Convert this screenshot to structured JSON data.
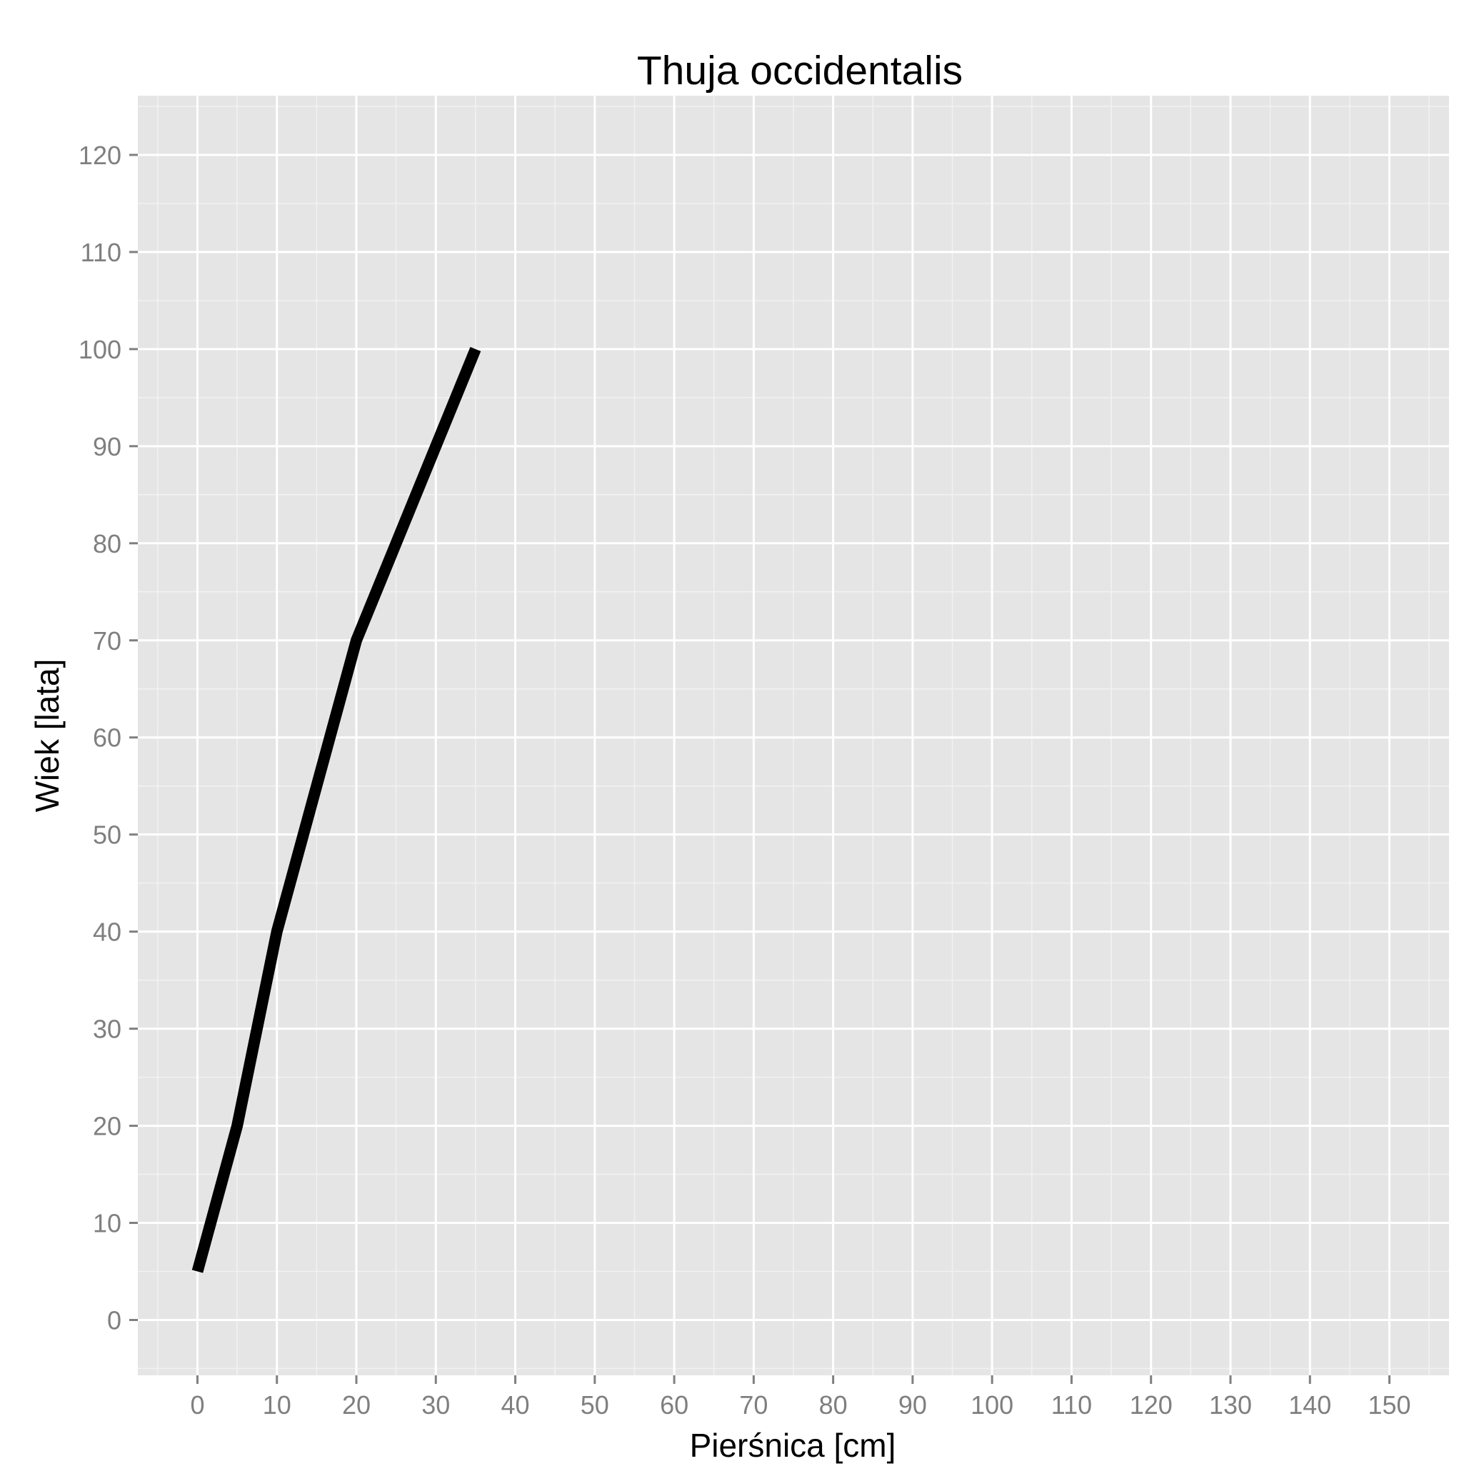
{
  "chart_data": {
    "type": "line",
    "title": "Thuja occidentalis",
    "xlabel": "Pierśnica [cm]",
    "ylabel": "Wiek [lata]",
    "xlim": [
      -7.5,
      157.5
    ],
    "ylim": [
      -5.7,
      126.1
    ],
    "xticks": [
      0,
      10,
      20,
      30,
      40,
      50,
      60,
      70,
      80,
      90,
      100,
      110,
      120,
      130,
      140,
      150
    ],
    "yticks": [
      0,
      10,
      20,
      30,
      40,
      50,
      60,
      70,
      80,
      90,
      100,
      110,
      120
    ],
    "grid": true,
    "legend": "none",
    "series": [
      {
        "x": [
          0,
          5,
          10,
          20,
          35
        ],
        "y": [
          5,
          20,
          40,
          70,
          100
        ]
      }
    ]
  },
  "colors": {
    "panel_background": "#e5e5e5",
    "grid_major": "#ffffff",
    "grid_minor": "#f2f2f2",
    "line": "#000000",
    "tick_label": "#7f7f7f"
  }
}
